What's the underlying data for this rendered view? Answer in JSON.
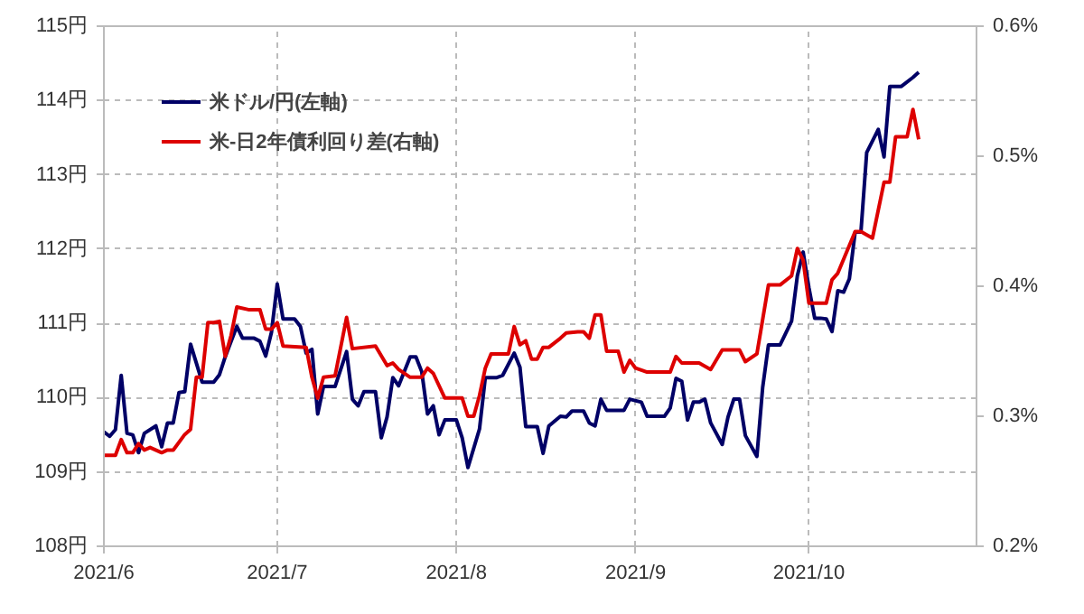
{
  "chart_data": {
    "type": "line",
    "legend": "top left",
    "grid": true,
    "xlim": [
      "2021-06-01",
      "2021-10-30"
    ],
    "xticks": [
      {
        "value": "2021-06-01",
        "label": "2021/6"
      },
      {
        "value": "2021-07-01",
        "label": "2021/7"
      },
      {
        "value": "2021-08-01",
        "label": "2021/8"
      },
      {
        "value": "2021-09-01",
        "label": "2021/9"
      },
      {
        "value": "2021-10-01",
        "label": "2021/10"
      }
    ],
    "ylim": [
      108,
      115
    ],
    "yticks": [
      {
        "value": 108,
        "label": "108円"
      },
      {
        "value": 109,
        "label": "109円"
      },
      {
        "value": 110,
        "label": "110円"
      },
      {
        "value": 111,
        "label": "111円"
      },
      {
        "value": 112,
        "label": "112円"
      },
      {
        "value": 113,
        "label": "113円"
      },
      {
        "value": 114,
        "label": "114円"
      },
      {
        "value": 115,
        "label": "115円"
      }
    ],
    "y2lim": [
      0.2,
      0.6
    ],
    "y2ticks": [
      {
        "value": 0.2,
        "label": "0.2%"
      },
      {
        "value": 0.3,
        "label": "0.3%"
      },
      {
        "value": 0.4,
        "label": "0.4%"
      },
      {
        "value": 0.5,
        "label": "0.5%"
      },
      {
        "value": 0.6,
        "label": "0.6%"
      }
    ],
    "series": [
      {
        "name": "米ドル/円(左軸)",
        "color": "#000066",
        "x": [
          "2021-06-01",
          "2021-06-02",
          "2021-06-03",
          "2021-06-04",
          "2021-06-05",
          "2021-06-06",
          "2021-06-07",
          "2021-06-08",
          "2021-06-10",
          "2021-06-11",
          "2021-06-12",
          "2021-06-13",
          "2021-06-14",
          "2021-06-15",
          "2021-06-16",
          "2021-06-18",
          "2021-06-20",
          "2021-06-21",
          "2021-06-22",
          "2021-06-24",
          "2021-06-25",
          "2021-06-27",
          "2021-06-28",
          "2021-06-29",
          "2021-06-30",
          "2021-07-01",
          "2021-07-02",
          "2021-07-04",
          "2021-07-05",
          "2021-07-06",
          "2021-07-07",
          "2021-07-08",
          "2021-07-09",
          "2021-07-11",
          "2021-07-13",
          "2021-07-14",
          "2021-07-15",
          "2021-07-16",
          "2021-07-18",
          "2021-07-19",
          "2021-07-20",
          "2021-07-21",
          "2021-07-22",
          "2021-07-24",
          "2021-07-25",
          "2021-07-26",
          "2021-07-27",
          "2021-07-28",
          "2021-07-29",
          "2021-07-30",
          "2021-08-01",
          "2021-08-02",
          "2021-08-03",
          "2021-08-05",
          "2021-08-06",
          "2021-08-08",
          "2021-08-09",
          "2021-08-11",
          "2021-08-12",
          "2021-08-13",
          "2021-08-15",
          "2021-08-16",
          "2021-08-17",
          "2021-08-19",
          "2021-08-20",
          "2021-08-21",
          "2021-08-23",
          "2021-08-24",
          "2021-08-25",
          "2021-08-26",
          "2021-08-27",
          "2021-08-30",
          "2021-08-31",
          "2021-09-02",
          "2021-09-03",
          "2021-09-06",
          "2021-09-07",
          "2021-09-08",
          "2021-09-09",
          "2021-09-10",
          "2021-09-11",
          "2021-09-12",
          "2021-09-13",
          "2021-09-14",
          "2021-09-16",
          "2021-09-17",
          "2021-09-18",
          "2021-09-19",
          "2021-09-20",
          "2021-09-22",
          "2021-09-23",
          "2021-09-24",
          "2021-09-26",
          "2021-09-28",
          "2021-09-29",
          "2021-09-30",
          "2021-10-01",
          "2021-10-02",
          "2021-10-03",
          "2021-10-04",
          "2021-10-05",
          "2021-10-06",
          "2021-10-07",
          "2021-10-08",
          "2021-10-09",
          "2021-10-10",
          "2021-10-11",
          "2021-10-13",
          "2021-10-14",
          "2021-10-15",
          "2021-10-17",
          "2021-10-19",
          "2021-10-20"
        ],
        "values": [
          109.54,
          109.48,
          109.57,
          110.3,
          109.52,
          109.5,
          109.26,
          109.52,
          109.62,
          109.34,
          109.66,
          109.66,
          110.07,
          110.08,
          110.72,
          110.21,
          110.21,
          110.31,
          110.55,
          110.96,
          110.8,
          110.8,
          110.76,
          110.56,
          110.88,
          111.53,
          111.06,
          111.06,
          110.96,
          110.6,
          110.65,
          109.78,
          110.15,
          110.15,
          110.62,
          109.98,
          109.89,
          110.08,
          110.08,
          109.46,
          109.74,
          110.27,
          110.16,
          110.55,
          110.55,
          110.35,
          109.78,
          109.89,
          109.5,
          109.7,
          109.7,
          109.46,
          109.06,
          109.58,
          110.27,
          110.27,
          110.3,
          110.6,
          110.41,
          109.61,
          109.61,
          109.25,
          109.62,
          109.75,
          109.74,
          109.82,
          109.82,
          109.66,
          109.62,
          109.98,
          109.83,
          109.83,
          109.98,
          109.94,
          109.75,
          109.75,
          109.86,
          110.26,
          110.22,
          109.7,
          109.94,
          109.94,
          109.98,
          109.66,
          109.37,
          109.74,
          109.98,
          109.98,
          109.49,
          109.21,
          110.14,
          110.71,
          110.71,
          111.03,
          111.64,
          111.96,
          111.48,
          111.07,
          111.07,
          111.06,
          110.89,
          111.44,
          111.42,
          111.6,
          112.23,
          112.23,
          113.3,
          113.61,
          113.24,
          114.19,
          114.19,
          114.31,
          114.38
        ]
      },
      {
        "name": "米-日2年債利回り差(右軸)",
        "color": "#dd0000",
        "axis": "y2",
        "x": [
          "2021-06-01",
          "2021-06-03",
          "2021-06-04",
          "2021-06-05",
          "2021-06-06",
          "2021-06-07",
          "2021-06-08",
          "2021-06-09",
          "2021-06-11",
          "2021-06-12",
          "2021-06-13",
          "2021-06-15",
          "2021-06-16",
          "2021-06-17",
          "2021-06-18",
          "2021-06-19",
          "2021-06-20",
          "2021-06-21",
          "2021-06-22",
          "2021-06-23",
          "2021-06-24",
          "2021-06-26",
          "2021-06-28",
          "2021-06-29",
          "2021-06-30",
          "2021-07-01",
          "2021-07-02",
          "2021-07-06",
          "2021-07-07",
          "2021-07-08",
          "2021-07-09",
          "2021-07-11",
          "2021-07-13",
          "2021-07-14",
          "2021-07-18",
          "2021-07-20",
          "2021-07-21",
          "2021-07-22",
          "2021-07-24",
          "2021-07-26",
          "2021-07-27",
          "2021-07-28",
          "2021-07-30",
          "2021-08-02",
          "2021-08-03",
          "2021-08-04",
          "2021-08-05",
          "2021-08-06",
          "2021-08-07",
          "2021-08-10",
          "2021-08-11",
          "2021-08-12",
          "2021-08-13",
          "2021-08-14",
          "2021-08-15",
          "2021-08-16",
          "2021-08-17",
          "2021-08-19",
          "2021-08-20",
          "2021-08-22",
          "2021-08-23",
          "2021-08-24",
          "2021-08-25",
          "2021-08-26",
          "2021-08-27",
          "2021-08-29",
          "2021-08-30",
          "2021-08-31",
          "2021-09-01",
          "2021-09-03",
          "2021-09-07",
          "2021-09-08",
          "2021-09-09",
          "2021-09-12",
          "2021-09-14",
          "2021-09-16",
          "2021-09-19",
          "2021-09-20",
          "2021-09-22",
          "2021-09-24",
          "2021-09-26",
          "2021-09-28",
          "2021-09-29",
          "2021-09-30",
          "2021-10-01",
          "2021-10-04",
          "2021-10-05",
          "2021-10-06",
          "2021-10-09",
          "2021-10-10",
          "2021-10-12",
          "2021-10-14",
          "2021-10-15",
          "2021-10-16",
          "2021-10-18",
          "2021-10-19",
          "2021-10-20"
        ],
        "values": [
          0.27,
          0.27,
          0.282,
          0.272,
          0.272,
          0.279,
          0.274,
          0.276,
          0.272,
          0.274,
          0.274,
          0.286,
          0.29,
          0.33,
          0.33,
          0.372,
          0.372,
          0.373,
          0.346,
          0.362,
          0.384,
          0.382,
          0.382,
          0.367,
          0.367,
          0.372,
          0.354,
          0.353,
          0.33,
          0.314,
          0.33,
          0.331,
          0.376,
          0.352,
          0.354,
          0.339,
          0.341,
          0.336,
          0.33,
          0.33,
          0.337,
          0.333,
          0.314,
          0.314,
          0.3,
          0.3,
          0.316,
          0.337,
          0.348,
          0.348,
          0.369,
          0.355,
          0.358,
          0.344,
          0.344,
          0.353,
          0.353,
          0.36,
          0.364,
          0.365,
          0.365,
          0.36,
          0.378,
          0.378,
          0.35,
          0.35,
          0.334,
          0.343,
          0.337,
          0.334,
          0.334,
          0.346,
          0.341,
          0.341,
          0.336,
          0.351,
          0.351,
          0.342,
          0.348,
          0.401,
          0.401,
          0.408,
          0.429,
          0.42,
          0.387,
          0.387,
          0.405,
          0.41,
          0.442,
          0.442,
          0.437,
          0.48,
          0.48,
          0.515,
          0.515,
          0.536,
          0.513
        ]
      }
    ]
  }
}
